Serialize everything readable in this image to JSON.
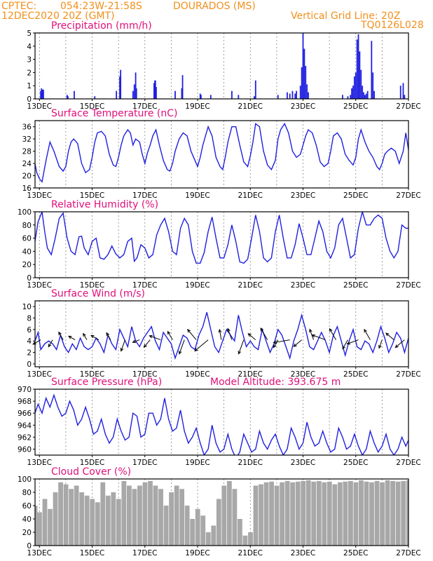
{
  "header": {
    "source": "CPTEC:",
    "coords": "054:23W-21:58S",
    "station": "DOURADOS (MS)",
    "datetime": "12DEC2020 20Z (GMT)",
    "grid_note": "Vertical Grid Line: 20Z",
    "model_id": "TQ0126L028"
  },
  "colors": {
    "header": "#f0901c",
    "title": "#e0107a",
    "series": "#2020e0",
    "cloud": "#a8a8a8"
  },
  "x_axis": {
    "start": "12DEC2020 20Z",
    "end": "27DEC2020 00Z",
    "tick_labels": [
      "13DEC",
      "15DEC",
      "17DEC",
      "19DEC",
      "21DEC",
      "23DEC",
      "25DEC",
      "27DEC"
    ],
    "tick_days": [
      13,
      15,
      17,
      19,
      21,
      23,
      25,
      27
    ],
    "grid_days": [
      13,
      14,
      15,
      16,
      17,
      18,
      19,
      20,
      21,
      22,
      23,
      24,
      25,
      26
    ]
  },
  "chart_data": [
    {
      "type": "bar",
      "title": "Precipitation (mm/h)",
      "ylim": [
        0,
        5
      ],
      "yticks": [
        0,
        1,
        2,
        3,
        4,
        5
      ],
      "x": [
        13.05,
        13.08,
        13.12,
        13.15,
        14.05,
        14.08,
        14.32,
        15.1,
        15.92,
        16.05,
        16.08,
        16.55,
        16.6,
        16.65,
        16.68,
        17.35,
        17.38,
        17.4,
        17.43,
        18.15,
        18.4,
        18.43,
        19.1,
        19.13,
        19.5,
        20.3,
        20.55,
        21.15,
        21.2,
        22.05,
        22.4,
        22.5,
        22.6,
        22.7,
        22.75,
        22.9,
        22.95,
        23.0,
        23.05,
        23.1,
        23.15,
        23.2,
        24.5,
        24.7,
        24.8,
        24.85,
        24.9,
        24.95,
        25.0,
        25.05,
        25.1,
        25.15,
        25.2,
        25.25,
        25.3,
        25.35,
        25.4,
        25.45,
        25.6,
        25.65,
        25.7,
        26.7,
        26.8,
        26.85
      ],
      "values": [
        0.6,
        0.8,
        0.7,
        0.7,
        0.3,
        0.2,
        0.6,
        0.2,
        0.6,
        1.7,
        2.2,
        0.6,
        1.1,
        2.0,
        0.8,
        1.2,
        1.4,
        1.4,
        0.9,
        0.6,
        0.8,
        1.8,
        0.4,
        0.3,
        0.3,
        0.6,
        0.3,
        0.2,
        1.4,
        0.3,
        0.5,
        0.4,
        0.6,
        0.4,
        0.6,
        1.0,
        2.4,
        5.0,
        3.8,
        2.5,
        1.1,
        0.5,
        0.3,
        0.2,
        0.3,
        0.8,
        1.0,
        1.7,
        2.0,
        4.5,
        4.9,
        3.6,
        2.2,
        1.0,
        0.5,
        0.3,
        0.4,
        0.6,
        4.4,
        2.0,
        0.6,
        1.0,
        1.2,
        0.3
      ]
    },
    {
      "type": "line",
      "title": "Surface Temperature (nC)",
      "ylim": [
        16,
        38
      ],
      "yticks": [
        16,
        20,
        24,
        28,
        32,
        36
      ],
      "x": [
        12.83,
        12.9,
        13.0,
        13.1,
        13.25,
        13.4,
        13.55,
        13.75,
        13.9,
        14.0,
        14.1,
        14.2,
        14.3,
        14.45,
        14.6,
        14.75,
        14.9,
        15.0,
        15.1,
        15.2,
        15.35,
        15.5,
        15.65,
        15.8,
        15.9,
        16.0,
        16.1,
        16.2,
        16.35,
        16.45,
        16.55,
        16.65,
        16.8,
        16.9,
        17.0,
        17.1,
        17.2,
        17.3,
        17.42,
        17.55,
        17.7,
        17.85,
        17.95,
        18.05,
        18.15,
        18.3,
        18.45,
        18.6,
        18.75,
        18.9,
        19.0,
        19.1,
        19.2,
        19.4,
        19.55,
        19.7,
        19.85,
        19.95,
        20.05,
        20.15,
        20.3,
        20.45,
        20.6,
        20.75,
        20.9,
        21.0,
        21.1,
        21.2,
        21.35,
        21.5,
        21.65,
        21.8,
        21.95,
        22.05,
        22.15,
        22.3,
        22.45,
        22.6,
        22.75,
        22.9,
        23.0,
        23.1,
        23.2,
        23.35,
        23.5,
        23.65,
        23.8,
        23.95,
        24.05,
        24.15,
        24.3,
        24.45,
        24.6,
        24.75,
        24.9,
        25.0,
        25.1,
        25.2,
        25.35,
        25.5,
        25.65,
        25.8,
        25.9,
        26.0,
        26.1,
        26.2,
        26.35,
        26.5,
        26.65,
        26.8,
        26.9,
        27.0
      ],
      "values": [
        24.0,
        21.0,
        19.0,
        18.0,
        25.0,
        31.0,
        28.0,
        23.0,
        21.5,
        23.0,
        28.0,
        31.0,
        32.0,
        30.5,
        24.0,
        21.0,
        22.0,
        26.0,
        31.0,
        34.0,
        34.5,
        33.0,
        27.0,
        23.5,
        23.0,
        26.0,
        30.0,
        33.0,
        35.0,
        34.0,
        30.0,
        32.0,
        31.0,
        27.0,
        24.0,
        27.5,
        30.0,
        33.0,
        35.0,
        30.0,
        25.0,
        22.0,
        21.5,
        24.0,
        28.0,
        32.0,
        34.0,
        33.0,
        28.0,
        25.0,
        23.0,
        26.0,
        30.0,
        36.0,
        33.0,
        26.0,
        23.0,
        22.0,
        26.0,
        31.0,
        36.0,
        36.0,
        30.0,
        24.5,
        23.0,
        26.5,
        31.0,
        37.0,
        36.0,
        28.0,
        23.5,
        22.0,
        25.0,
        32.0,
        35.0,
        37.0,
        34.0,
        28.0,
        26.0,
        27.0,
        30.0,
        33.0,
        35.0,
        34.0,
        30.0,
        24.5,
        23.0,
        24.0,
        28.0,
        33.0,
        34.0,
        32.0,
        27.0,
        25.0,
        23.5,
        26.0,
        32.0,
        35.0,
        31.0,
        28.0,
        26.0,
        23.0,
        22.0,
        24.0,
        27.0,
        28.0,
        29.0,
        28.0,
        24.0,
        28.0,
        34.0,
        28.5
      ]
    },
    {
      "type": "line",
      "title": "Relative Humidity (%)",
      "ylim": [
        0,
        100
      ],
      "yticks": [
        0,
        20,
        40,
        60,
        80,
        100
      ],
      "x": [
        12.83,
        12.95,
        13.1,
        13.2,
        13.3,
        13.45,
        13.6,
        13.75,
        13.9,
        14.05,
        14.2,
        14.35,
        14.5,
        14.6,
        14.7,
        14.85,
        15.0,
        15.15,
        15.3,
        15.45,
        15.6,
        15.75,
        15.9,
        16.05,
        16.2,
        16.35,
        16.5,
        16.6,
        16.7,
        16.85,
        17.0,
        17.15,
        17.3,
        17.45,
        17.6,
        17.75,
        17.9,
        18.05,
        18.2,
        18.35,
        18.5,
        18.65,
        18.8,
        18.95,
        19.1,
        19.25,
        19.4,
        19.55,
        19.7,
        19.85,
        20.0,
        20.15,
        20.3,
        20.45,
        20.6,
        20.75,
        20.9,
        21.05,
        21.2,
        21.35,
        21.5,
        21.65,
        21.8,
        21.95,
        22.1,
        22.25,
        22.4,
        22.55,
        22.7,
        22.85,
        23.0,
        23.15,
        23.3,
        23.45,
        23.6,
        23.75,
        23.9,
        24.05,
        24.2,
        24.35,
        24.5,
        24.65,
        24.8,
        24.95,
        25.1,
        25.25,
        25.4,
        25.55,
        25.7,
        25.85,
        26.0,
        26.15,
        26.3,
        26.45,
        26.6,
        26.75,
        26.9,
        27.0
      ],
      "values": [
        55.0,
        85.0,
        100.0,
        70.0,
        45.0,
        35.0,
        60.0,
        90.0,
        98.0,
        60.0,
        40.0,
        35.0,
        62.0,
        63.0,
        45.0,
        35.0,
        55.0,
        60.0,
        30.0,
        28.0,
        35.0,
        48.0,
        36.0,
        30.0,
        35.0,
        55.0,
        60.0,
        25.0,
        30.0,
        50.0,
        45.0,
        30.0,
        35.0,
        65.0,
        80.0,
        90.0,
        70.0,
        40.0,
        35.0,
        75.0,
        90.0,
        80.0,
        40.0,
        22.0,
        22.0,
        38.0,
        70.0,
        92.0,
        60.0,
        30.0,
        30.0,
        50.0,
        80.0,
        55.0,
        24.0,
        22.0,
        28.0,
        60.0,
        95.0,
        70.0,
        30.0,
        24.0,
        30.0,
        70.0,
        95.0,
        60.0,
        30.0,
        30.0,
        50.0,
        82.0,
        60.0,
        35.0,
        35.0,
        60.0,
        86.0,
        70.0,
        40.0,
        30.0,
        45.0,
        80.0,
        90.0,
        60.0,
        30.0,
        35.0,
        75.0,
        100.0,
        80.0,
        80.0,
        90.0,
        95.0,
        90.0,
        60.0,
        40.0,
        30.0,
        40.0,
        80.0,
        75.0,
        75.0
      ]
    },
    {
      "type": "line",
      "title": "Surface Wind (m/s)",
      "ylim": [
        -0.5,
        11
      ],
      "yticks": [
        0,
        2,
        4,
        6,
        8,
        10
      ],
      "x": [
        12.83,
        12.95,
        13.05,
        13.2,
        13.35,
        13.5,
        13.65,
        13.8,
        13.95,
        14.1,
        14.25,
        14.4,
        14.55,
        14.7,
        14.85,
        15.0,
        15.15,
        15.3,
        15.45,
        15.6,
        15.75,
        15.9,
        16.05,
        16.2,
        16.35,
        16.5,
        16.65,
        16.8,
        16.95,
        17.1,
        17.25,
        17.4,
        17.55,
        17.7,
        17.85,
        18.0,
        18.15,
        18.3,
        18.45,
        18.6,
        18.75,
        18.9,
        19.05,
        19.2,
        19.35,
        19.5,
        19.65,
        19.8,
        19.95,
        20.1,
        20.25,
        20.4,
        20.55,
        20.7,
        20.85,
        21.0,
        21.15,
        21.3,
        21.45,
        21.6,
        21.75,
        21.9,
        22.05,
        22.2,
        22.35,
        22.5,
        22.65,
        22.8,
        22.95,
        23.1,
        23.25,
        23.4,
        23.55,
        23.7,
        23.85,
        24.0,
        24.15,
        24.3,
        24.45,
        24.6,
        24.75,
        24.9,
        25.05,
        25.2,
        25.35,
        25.5,
        25.65,
        25.8,
        25.95,
        26.1,
        26.25,
        26.4,
        26.55,
        26.7,
        26.85,
        27.0
      ],
      "values": [
        4.0,
        5.5,
        2.5,
        3.5,
        4.0,
        3.5,
        2.5,
        5.0,
        3.0,
        2.0,
        3.5,
        2.5,
        4.5,
        3.0,
        2.5,
        3.0,
        4.5,
        3.5,
        2.0,
        5.0,
        3.5,
        2.5,
        6.0,
        4.5,
        3.0,
        6.5,
        4.0,
        3.0,
        4.5,
        5.5,
        6.5,
        4.0,
        2.5,
        5.5,
        4.5,
        3.5,
        1.0,
        3.0,
        5.0,
        4.5,
        3.0,
        2.5,
        5.0,
        6.5,
        9.0,
        6.0,
        3.0,
        2.0,
        4.0,
        6.0,
        5.0,
        4.0,
        8.5,
        5.5,
        3.0,
        4.0,
        3.0,
        2.5,
        6.0,
        4.0,
        2.0,
        3.5,
        6.0,
        5.0,
        3.0,
        1.0,
        4.0,
        6.0,
        8.5,
        6.0,
        3.0,
        2.5,
        4.0,
        5.5,
        4.0,
        2.0,
        5.0,
        6.5,
        4.0,
        1.5,
        4.0,
        6.0,
        3.0,
        2.5,
        4.0,
        3.5,
        2.0,
        4.0,
        6.5,
        4.5,
        2.0,
        3.5,
        5.5,
        4.5,
        2.0,
        4.5
      ],
      "vectors": {
        "x": [
          13.05,
          13.5,
          13.9,
          14.35,
          14.8,
          15.25,
          15.7,
          16.25,
          16.8,
          17.2,
          17.6,
          18.05,
          18.5,
          18.95,
          19.4,
          19.9,
          20.3,
          20.75,
          21.2,
          21.65,
          22.05,
          22.5,
          22.95,
          23.4,
          23.85,
          24.25,
          24.7,
          25.1,
          25.55,
          26.0,
          26.45,
          26.85
        ],
        "speed": [
          3.0,
          2.5,
          3.0,
          2.0,
          2.0,
          3.0,
          2.5,
          5.0,
          2.0,
          3.5,
          5.0,
          3.5,
          7.0,
          6.0,
          8.5,
          4.0,
          5.0,
          7.0,
          3.5,
          6.0,
          3.0,
          8.0,
          4.0,
          4.5,
          6.5,
          5.5,
          4.0,
          5.0,
          5.0,
          3.0,
          4.0,
          5.0
        ],
        "dir_deg": [
          210,
          240,
          120,
          150,
          120,
          150,
          120,
          250,
          200,
          230,
          160,
          120,
          250,
          130,
          220,
          100,
          110,
          250,
          140,
          120,
          240,
          190,
          220,
          110,
          160,
          120,
          240,
          200,
          120,
          250,
          140,
          220
        ]
      }
    },
    {
      "type": "line",
      "title": "Surface Pressure (hPa)",
      "annotation": "Model Altitude: 393.675 m",
      "ylim": [
        959,
        970
      ],
      "yticks": [
        960,
        962,
        964,
        966,
        968,
        970
      ],
      "x": [
        12.83,
        12.95,
        13.1,
        13.25,
        13.4,
        13.55,
        13.7,
        13.85,
        14.0,
        14.15,
        14.3,
        14.45,
        14.6,
        14.75,
        14.9,
        15.05,
        15.2,
        15.35,
        15.5,
        15.65,
        15.8,
        15.95,
        16.1,
        16.25,
        16.4,
        16.55,
        16.7,
        16.85,
        17.0,
        17.15,
        17.3,
        17.45,
        17.6,
        17.75,
        17.9,
        18.05,
        18.2,
        18.35,
        18.5,
        18.65,
        18.8,
        18.95,
        19.1,
        19.25,
        19.4,
        19.55,
        19.7,
        19.85,
        20.0,
        20.15,
        20.3,
        20.45,
        20.6,
        20.75,
        20.9,
        21.05,
        21.2,
        21.35,
        21.5,
        21.65,
        21.8,
        21.95,
        22.1,
        22.25,
        22.4,
        22.55,
        22.7,
        22.85,
        23.0,
        23.15,
        23.3,
        23.45,
        23.6,
        23.75,
        23.9,
        24.05,
        24.2,
        24.35,
        24.5,
        24.65,
        24.8,
        24.95,
        25.1,
        25.25,
        25.4,
        25.55,
        25.7,
        25.85,
        26.0,
        26.15,
        26.3,
        26.45,
        26.6,
        26.75,
        26.9,
        27.0
      ],
      "values": [
        966.0,
        967.5,
        966.0,
        968.5,
        967.0,
        969.0,
        967.0,
        965.5,
        966.0,
        968.0,
        966.5,
        964.0,
        965.0,
        967.0,
        965.0,
        962.5,
        963.0,
        965.0,
        962.5,
        961.0,
        962.0,
        965.0,
        963.0,
        961.5,
        962.0,
        966.0,
        965.5,
        962.0,
        962.5,
        966.0,
        966.0,
        964.0,
        965.0,
        968.5,
        965.0,
        963.0,
        963.5,
        966.5,
        963.0,
        961.0,
        962.0,
        963.5,
        961.0,
        959.0,
        960.0,
        964.0,
        961.0,
        959.5,
        960.0,
        962.5,
        960.0,
        958.5,
        959.5,
        962.5,
        961.0,
        959.5,
        960.0,
        963.0,
        961.0,
        960.0,
        961.5,
        962.5,
        960.5,
        959.0,
        960.0,
        963.5,
        962.0,
        960.0,
        961.0,
        964.5,
        962.0,
        960.5,
        961.0,
        963.0,
        961.0,
        959.5,
        960.0,
        963.5,
        962.0,
        960.0,
        960.5,
        962.5,
        960.5,
        959.0,
        960.0,
        963.0,
        961.0,
        959.5,
        960.5,
        962.5,
        960.0,
        959.0,
        960.0,
        962.0,
        960.5,
        961.5
      ]
    },
    {
      "type": "bar",
      "title": "Cloud Cover (%)",
      "ylim": [
        0,
        100
      ],
      "yticks": [
        0,
        20,
        40,
        60,
        80,
        100
      ],
      "x": [
        12.83,
        13.0,
        13.2,
        13.4,
        13.6,
        13.8,
        14.0,
        14.2,
        14.4,
        14.6,
        14.8,
        15.0,
        15.2,
        15.4,
        15.6,
        15.8,
        16.0,
        16.2,
        16.4,
        16.6,
        16.8,
        17.0,
        17.2,
        17.4,
        17.6,
        17.8,
        18.0,
        18.2,
        18.4,
        18.6,
        18.8,
        19.0,
        19.2,
        19.4,
        19.6,
        19.8,
        20.0,
        20.2,
        20.4,
        20.6,
        20.8,
        21.0,
        21.2,
        21.4,
        21.6,
        21.8,
        22.0,
        22.2,
        22.4,
        22.6,
        22.8,
        23.0,
        23.2,
        23.4,
        23.6,
        23.8,
        24.0,
        24.2,
        24.4,
        24.6,
        24.8,
        25.0,
        25.2,
        25.4,
        25.6,
        25.8,
        26.0,
        26.2,
        26.4,
        26.6,
        26.8,
        27.0
      ],
      "values": [
        60,
        50,
        70,
        55,
        80,
        95,
        92,
        85,
        90,
        80,
        75,
        70,
        65,
        95,
        75,
        80,
        70,
        97,
        90,
        85,
        90,
        95,
        97,
        90,
        85,
        60,
        80,
        90,
        85,
        60,
        40,
        55,
        45,
        20,
        30,
        70,
        90,
        97,
        85,
        40,
        15,
        20,
        90,
        92,
        95,
        96,
        90,
        95,
        97,
        95,
        96,
        97,
        98,
        96,
        97,
        95,
        96,
        92,
        95,
        96,
        97,
        95,
        98,
        96,
        95,
        97,
        95,
        98,
        97,
        96,
        97,
        98
      ]
    }
  ]
}
